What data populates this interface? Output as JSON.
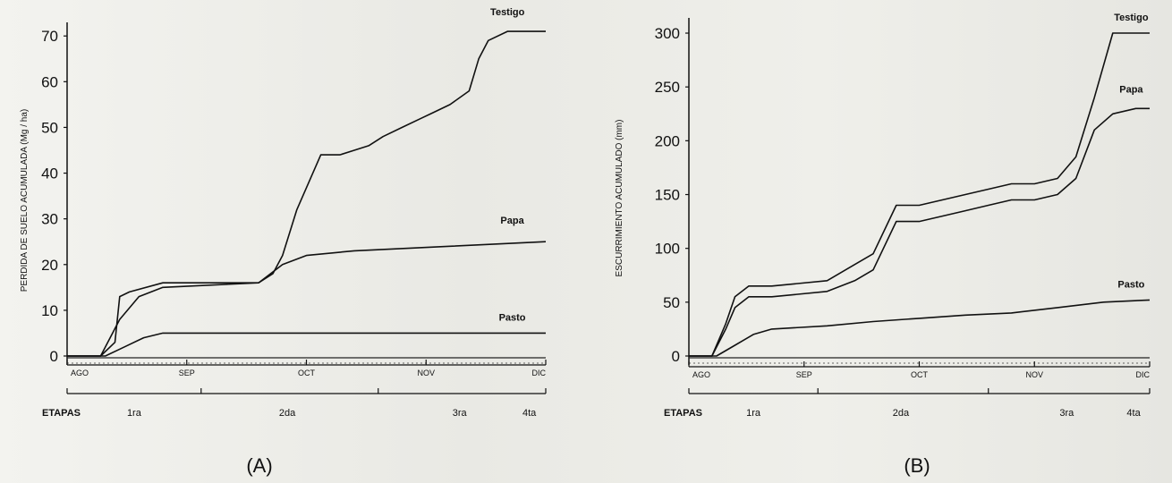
{
  "chart_data": [
    {
      "type": "line",
      "panel_label": "(A)",
      "ylabel": "PERDIDA DE SUELO ACUMULADA (Mg / ha)",
      "ylim": [
        0,
        72
      ],
      "yticks": [
        0,
        10,
        20,
        30,
        40,
        50,
        60,
        70
      ],
      "xlim": [
        0,
        100
      ],
      "months": [
        "AGO",
        "SEP",
        "OCT",
        "NOV",
        "DIC"
      ],
      "stages_label": "ETAPAS",
      "stages": [
        "1ra",
        "2da",
        "3ra",
        "4ta"
      ],
      "series": [
        {
          "name": "Testigo",
          "x": [
            0,
            7,
            10,
            11,
            13,
            20,
            25,
            40,
            43,
            45,
            48,
            53,
            57,
            60,
            63,
            66,
            70,
            74,
            76,
            80,
            84,
            86,
            88,
            92,
            96,
            100
          ],
          "y": [
            0,
            0,
            3,
            13,
            14,
            16,
            16,
            16,
            18,
            22,
            32,
            44,
            44,
            45,
            46,
            48,
            50,
            52,
            53,
            55,
            58,
            65,
            69,
            71,
            71,
            71
          ]
        },
        {
          "name": "Papa",
          "x": [
            0,
            7,
            11,
            15,
            20,
            40,
            45,
            50,
            60,
            80,
            100
          ],
          "y": [
            0,
            0,
            8,
            13,
            15,
            16,
            20,
            22,
            23,
            24,
            25
          ]
        },
        {
          "name": "Pasto",
          "x": [
            0,
            8,
            12,
            16,
            20,
            100
          ],
          "y": [
            0,
            0,
            2,
            4,
            5,
            5
          ]
        }
      ]
    },
    {
      "type": "line",
      "panel_label": "(B)",
      "ylabel": "ESCURRIMIENTO ACUMULADO (mm)",
      "ylim": [
        0,
        310
      ],
      "yticks": [
        0,
        50,
        100,
        150,
        200,
        250,
        300
      ],
      "xlim": [
        0,
        100
      ],
      "months": [
        "AGO",
        "SEP",
        "OCT",
        "NOV",
        "DIC"
      ],
      "stages_label": "ETAPAS",
      "stages": [
        "1ra",
        "2da",
        "3ra",
        "4ta"
      ],
      "series": [
        {
          "name": "Testigo",
          "x": [
            0,
            5,
            8,
            10,
            13,
            18,
            30,
            36,
            40,
            45,
            50,
            55,
            60,
            65,
            70,
            75,
            80,
            84,
            88,
            92,
            97,
            100
          ],
          "y": [
            0,
            0,
            30,
            55,
            65,
            65,
            70,
            85,
            95,
            140,
            140,
            145,
            150,
            155,
            160,
            160,
            165,
            185,
            240,
            300,
            300,
            300
          ]
        },
        {
          "name": "Papa",
          "x": [
            0,
            5,
            8,
            10,
            13,
            18,
            30,
            36,
            40,
            45,
            50,
            55,
            60,
            65,
            70,
            75,
            80,
            84,
            88,
            92,
            97,
            100
          ],
          "y": [
            0,
            0,
            25,
            45,
            55,
            55,
            60,
            70,
            80,
            125,
            125,
            130,
            135,
            140,
            145,
            145,
            150,
            165,
            210,
            225,
            230,
            230
          ]
        },
        {
          "name": "Pasto",
          "x": [
            0,
            6,
            10,
            14,
            18,
            30,
            40,
            50,
            60,
            70,
            80,
            90,
            100
          ],
          "y": [
            0,
            0,
            10,
            20,
            25,
            28,
            32,
            35,
            38,
            40,
            45,
            50,
            52
          ]
        }
      ]
    }
  ]
}
